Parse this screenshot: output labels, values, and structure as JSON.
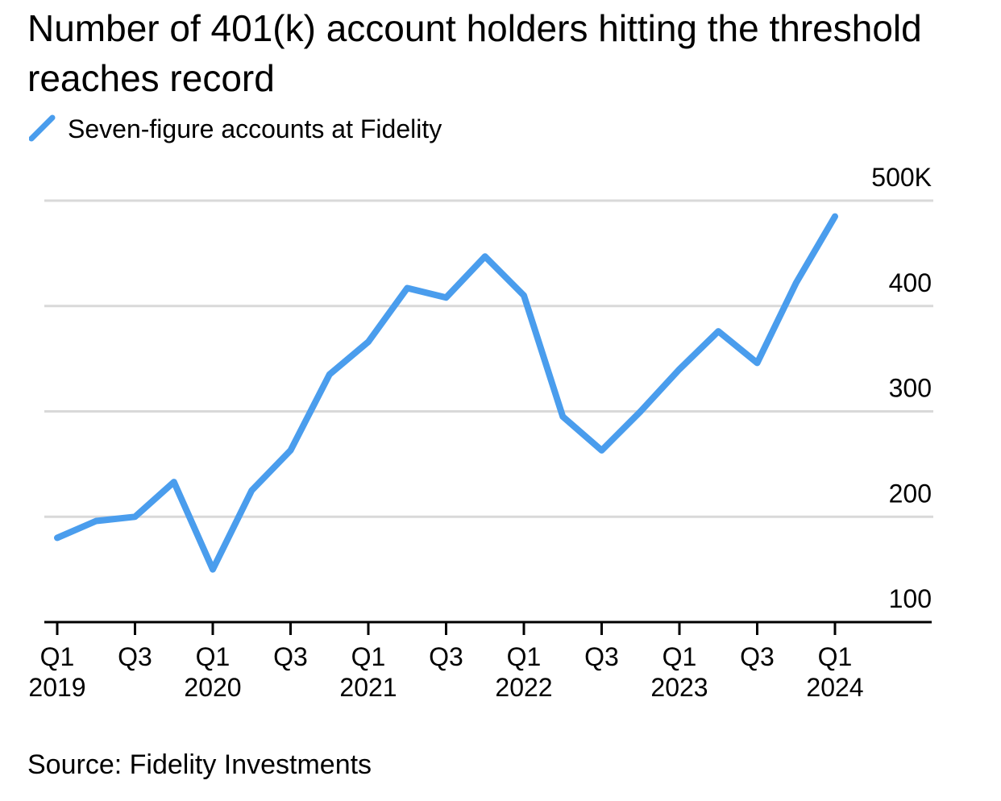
{
  "title": "Number of 401(k) account holders hitting the threshold reaches record",
  "source": "Source: Fidelity Investments",
  "colors": {
    "series": "#4a9ded",
    "grid": "#d9d9d9",
    "axis": "#000000"
  },
  "chart_data": {
    "type": "line",
    "title": "Number of 401(k) account holders hitting the threshold reaches record",
    "xlabel": "",
    "ylabel": "",
    "grid": true,
    "legend_position": "top-left",
    "ylim": [
      100,
      500
    ],
    "y_ticks": [
      {
        "value": 100,
        "label": "100"
      },
      {
        "value": 200,
        "label": "200"
      },
      {
        "value": 300,
        "label": "300"
      },
      {
        "value": 400,
        "label": "400"
      },
      {
        "value": 500,
        "label": "500K"
      }
    ],
    "x": [
      "Q1 2019",
      "Q2 2019",
      "Q3 2019",
      "Q4 2019",
      "Q1 2020",
      "Q2 2020",
      "Q3 2020",
      "Q4 2020",
      "Q1 2021",
      "Q2 2021",
      "Q3 2021",
      "Q4 2021",
      "Q1 2022",
      "Q2 2022",
      "Q3 2022",
      "Q4 2022",
      "Q1 2023",
      "Q2 2023",
      "Q3 2023",
      "Q4 2023",
      "Q1 2024"
    ],
    "x_ticks": [
      {
        "index": 0,
        "label1": "Q1",
        "label2": "2019"
      },
      {
        "index": 2,
        "label1": "Q3",
        "label2": ""
      },
      {
        "index": 4,
        "label1": "Q1",
        "label2": "2020"
      },
      {
        "index": 6,
        "label1": "Q3",
        "label2": ""
      },
      {
        "index": 8,
        "label1": "Q1",
        "label2": "2021"
      },
      {
        "index": 10,
        "label1": "Q3",
        "label2": ""
      },
      {
        "index": 12,
        "label1": "Q1",
        "label2": "2022"
      },
      {
        "index": 14,
        "label1": "Q3",
        "label2": ""
      },
      {
        "index": 16,
        "label1": "Q1",
        "label2": "2023"
      },
      {
        "index": 18,
        "label1": "Q3",
        "label2": ""
      },
      {
        "index": 20,
        "label1": "Q1",
        "label2": "2024"
      }
    ],
    "series": [
      {
        "name": "Seven-figure accounts at Fidelity",
        "values": [
          180,
          196,
          200,
          233,
          150,
          225,
          263,
          335,
          366,
          417,
          408,
          447,
          410,
          295,
          263,
          300,
          340,
          376,
          346,
          422,
          485
        ]
      }
    ]
  }
}
